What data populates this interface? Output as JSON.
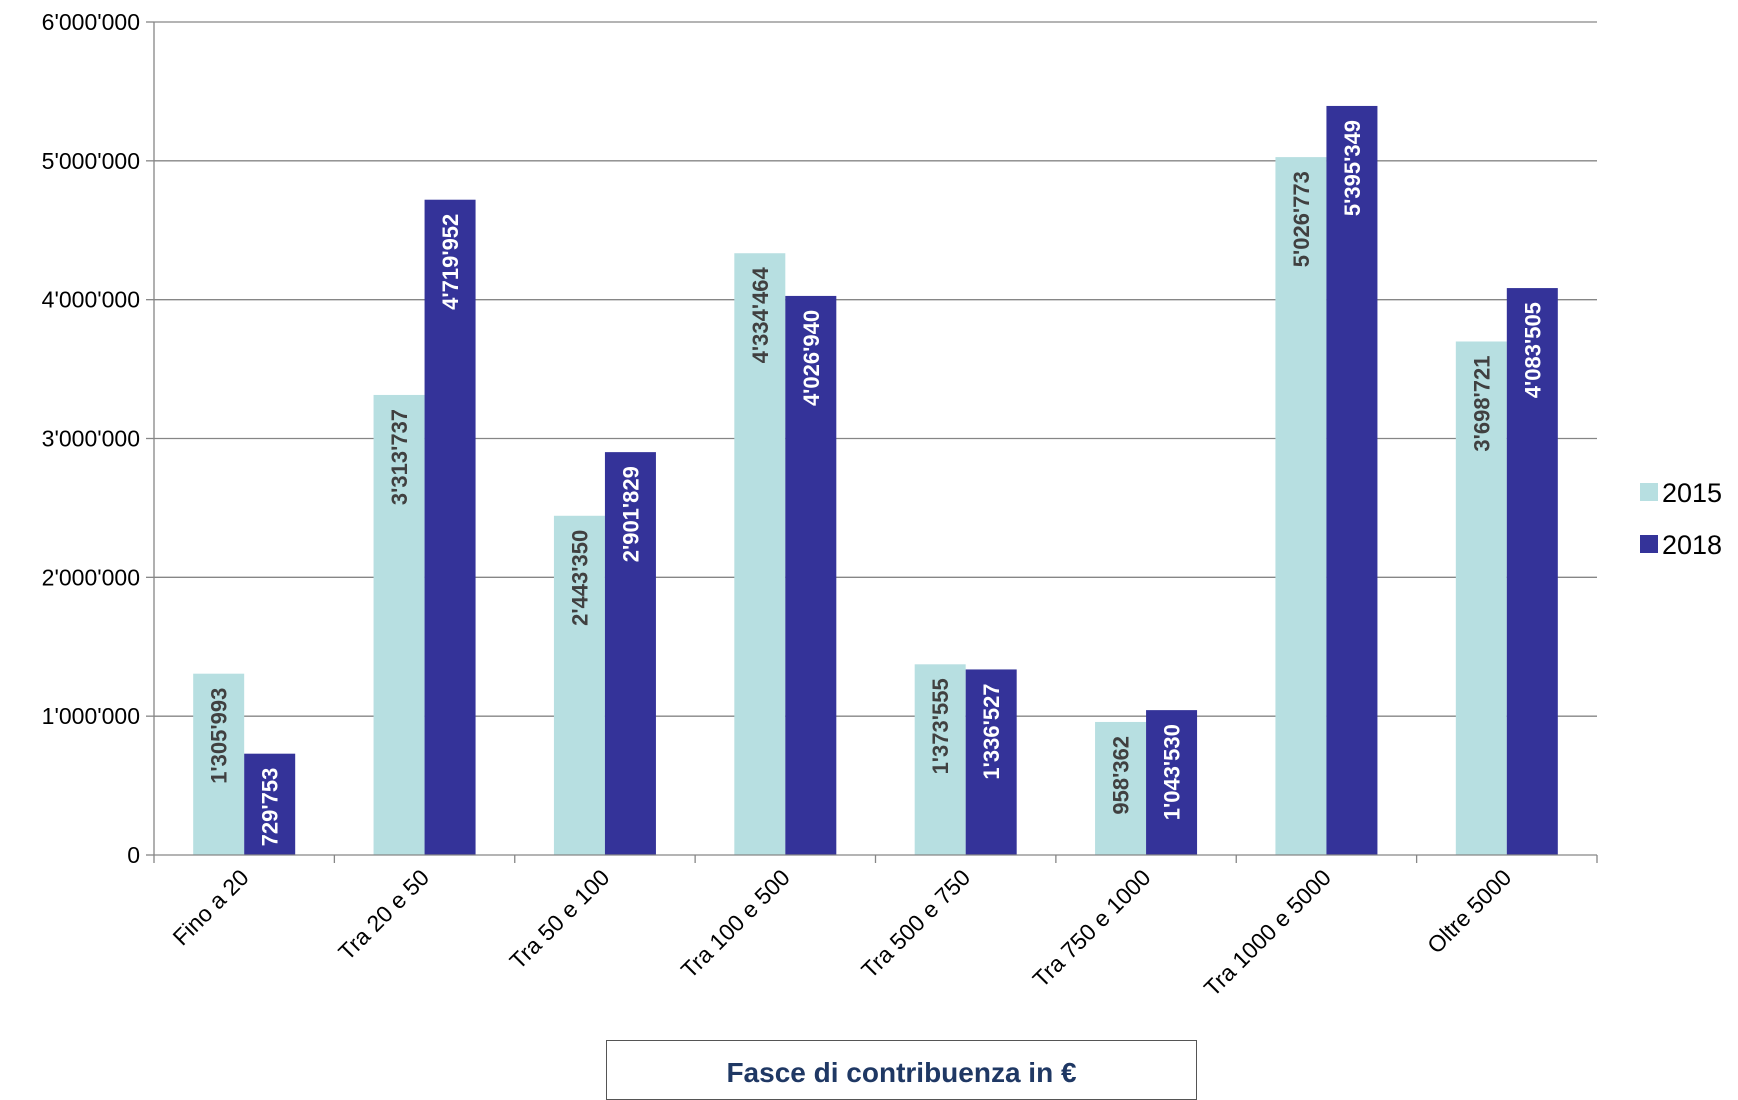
{
  "chart_data": {
    "type": "bar",
    "title": "",
    "xlabel": "Fasce di contribuenza in €",
    "ylabel": "",
    "ylim": [
      0,
      6000000
    ],
    "yticks": [
      0,
      1000000,
      2000000,
      3000000,
      4000000,
      5000000,
      6000000
    ],
    "ytick_labels": [
      "0",
      "1'000'000",
      "2'000'000",
      "3'000'000",
      "4'000'000",
      "5'000'000",
      "6'000'000"
    ],
    "categories": [
      "Fino a 20",
      "Tra 20 e 50",
      "Tra 50 e 100",
      "Tra 100 e 500",
      "Tra 500 e 750",
      "Tra 750 e 1000",
      "Tra 1000 e 5000",
      "Oltre 5000"
    ],
    "series": [
      {
        "name": "2015",
        "color": "#b7dfe1",
        "label_color": "#404040",
        "values": [
          1305993,
          3313737,
          2443350,
          4334464,
          1373555,
          958362,
          5026773,
          3698721
        ],
        "labels": [
          "1'305'993",
          "3'313'737",
          "2'443'350",
          "4'334'464",
          "1'373'555",
          "958'362",
          "5'026'773",
          "3'698'721"
        ]
      },
      {
        "name": "2018",
        "color": "#343399",
        "label_color": "#ffffff",
        "values": [
          729753,
          4719952,
          2901829,
          4026940,
          1336527,
          1043530,
          5395349,
          4083505
        ],
        "labels": [
          "729'753",
          "4'719'952",
          "2'901'829",
          "4'026'940",
          "1'336'527",
          "1'043'530",
          "5'395'349",
          "4'083'505"
        ]
      }
    ],
    "grid": true,
    "legend_position": "right"
  }
}
